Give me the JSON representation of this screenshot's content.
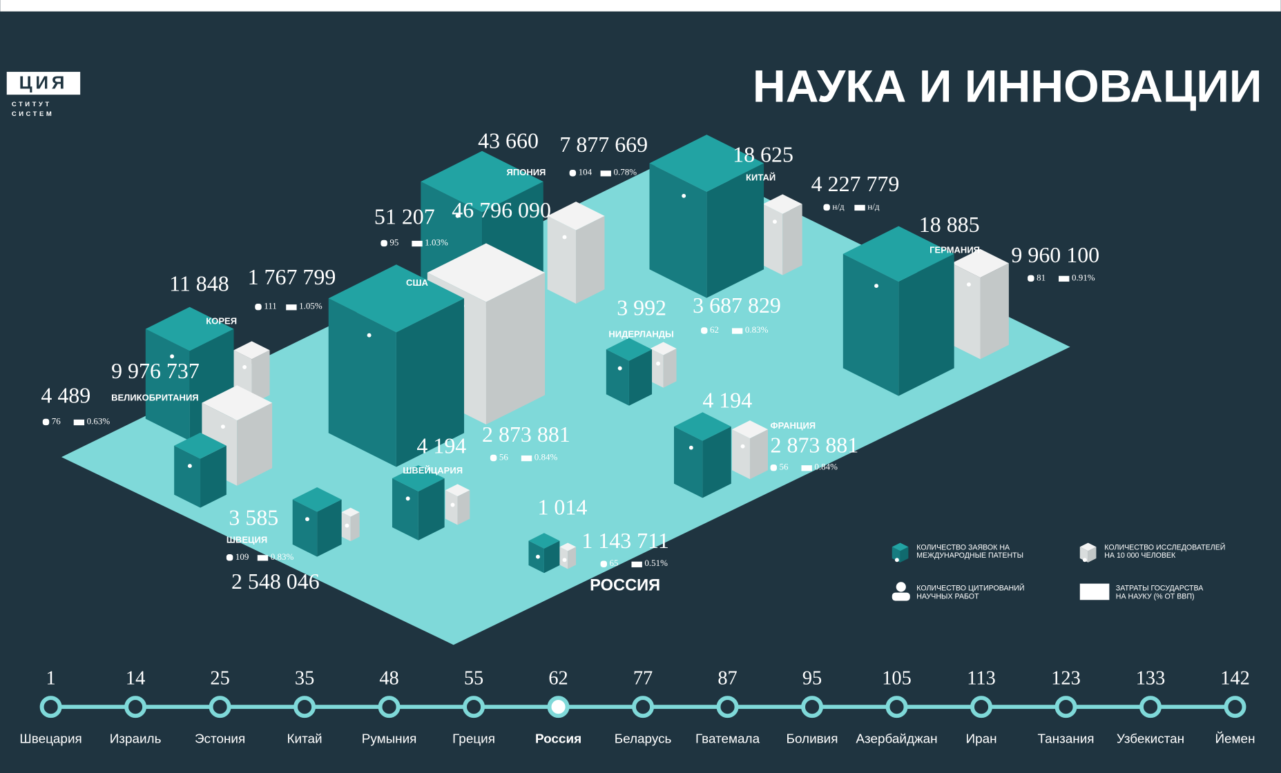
{
  "header": {
    "logo_title": "ЦИЯ",
    "logo_line1": "СТИТУТ",
    "logo_line2": "СИСТЕМ",
    "title": "НАУКА И ИННОВАЦИИ"
  },
  "countries": [
    {
      "name": "ЯПОНИЯ",
      "patents": "43 660",
      "citations": "7 877 669",
      "researchers": "104",
      "spending": "0.78%"
    },
    {
      "name": "КИТАЙ",
      "patents": "18 625",
      "citations": "4 227 779",
      "researchers": "н/д",
      "spending": "н/д"
    },
    {
      "name": "ГЕРМАНИЯ",
      "patents": "18 885",
      "citations": "9 960 100",
      "researchers": "81",
      "spending": "0.91%"
    },
    {
      "name": "США",
      "patents": "51 207",
      "citations": "46 796 090",
      "researchers": "95",
      "spending": "1.03%"
    },
    {
      "name": "КОРЕЯ",
      "patents": "11 848",
      "citations": "1 767 799",
      "researchers": "111",
      "spending": "1.05%"
    },
    {
      "name": "ВЕЛИКОБРИТАНИЯ",
      "patents": "4 489",
      "citations": "9 976 737",
      "researchers": "76",
      "spending": "0.63%"
    },
    {
      "name": "НИДЕРЛАНДЫ",
      "patents": "3 992",
      "citations": "3 687 829",
      "researchers": "62",
      "spending": "0.83%"
    },
    {
      "name": "ФРАНЦИЯ",
      "patents": "4 194",
      "citations": "2 873 881",
      "researchers": "56",
      "spending": "0.84%"
    },
    {
      "name": "ШВЕЙЦАРИЯ",
      "patents": "4 194",
      "citations": "2 873 881",
      "researchers": "56",
      "spending": "0.84%"
    },
    {
      "name": "ШВЕЦИЯ",
      "patents": "3 585",
      "citations": "2 548 046",
      "researchers": "109",
      "spending": "0.83%"
    },
    {
      "name": "РОССИЯ",
      "patents": "1 014",
      "citations": "1 143 711",
      "researchers": "65",
      "spending": "0.51%"
    }
  ],
  "legend": [
    {
      "lines": [
        "КОЛИЧЕСТВО ЗАЯВОК НА",
        "МЕЖДУНАРОДНЫЕ ПАТЕНТЫ"
      ]
    },
    {
      "lines": [
        "КОЛИЧЕСТВО ИССЛЕДОВАТЕЛЕЙ",
        "НА 10 000 ЧЕЛОВЕК"
      ]
    },
    {
      "lines": [
        "КОЛИЧЕСТВО ЦИТИРОВАНИЙ",
        "НАУЧНЫХ РАБОТ"
      ]
    },
    {
      "lines": [
        "ЗАТРАТЫ ГОСУДАРСТВА",
        "НА НАУКУ (% ОТ ВВП)"
      ]
    }
  ],
  "ranking": [
    {
      "rank": "1",
      "country": "Швецария"
    },
    {
      "rank": "14",
      "country": "Израиль"
    },
    {
      "rank": "25",
      "country": "Эстония"
    },
    {
      "rank": "35",
      "country": "Китай"
    },
    {
      "rank": "48",
      "country": "Румыния"
    },
    {
      "rank": "55",
      "country": "Греция"
    },
    {
      "rank": "62",
      "country": "Россия"
    },
    {
      "rank": "77",
      "country": "Беларусь"
    },
    {
      "rank": "87",
      "country": "Гватемала"
    },
    {
      "rank": "95",
      "country": "Боливия"
    },
    {
      "rank": "105",
      "country": "Азербайджан"
    },
    {
      "rank": "113",
      "country": "Иран"
    },
    {
      "rank": "123",
      "country": "Танзания"
    },
    {
      "rank": "133",
      "country": "Узбекистан"
    },
    {
      "rank": "142",
      "country": "Йемен"
    }
  ]
}
